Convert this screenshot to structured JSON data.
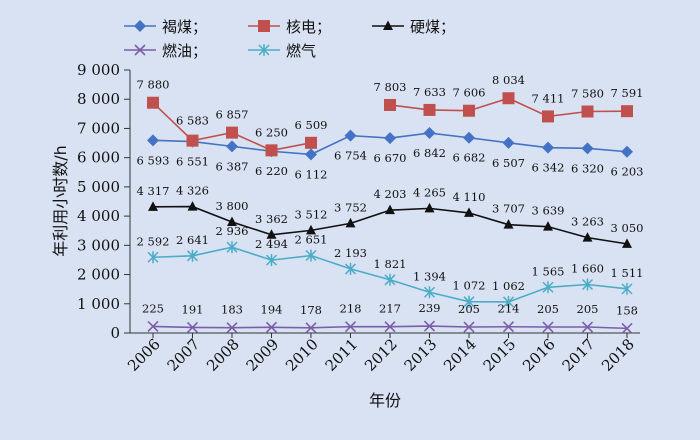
{
  "chart_data": {
    "type": "line",
    "title": "",
    "xlabel": "年份",
    "ylabel": "年利用小时数/h",
    "ylim": [
      0,
      9000
    ],
    "yticks": [
      0,
      1000,
      2000,
      3000,
      4000,
      5000,
      6000,
      7000,
      8000,
      9000
    ],
    "ytick_labels": [
      "0",
      "1 000",
      "2 000",
      "3 000",
      "4 000",
      "5 000",
      "6 000",
      "7 000",
      "8 000",
      "9 000"
    ],
    "categories": [
      "2006",
      "2007",
      "2008",
      "2009",
      "2010",
      "2011",
      "2012",
      "2013",
      "2014",
      "2015",
      "2016",
      "2017",
      "2018"
    ],
    "grid": false,
    "legend_position": "top",
    "series": [
      {
        "name": "褐煤",
        "legend_label": "褐煤；",
        "color": "#4472c4",
        "marker": "diamond",
        "values": [
          6593,
          6551,
          6387,
          6220,
          6112,
          6754,
          6670,
          6842,
          6682,
          6507,
          6342,
          6320,
          6203
        ],
        "labels": [
          "6 593",
          "6 551",
          "6 387",
          "6 220",
          "6 112",
          "6 754",
          "6 670",
          "6 842",
          "6 682",
          "6 507",
          "6 342",
          "6 320",
          "6 203"
        ]
      },
      {
        "name": "核电",
        "legend_label": "核电；",
        "color": "#c0504d",
        "marker": "square",
        "values": [
          7880,
          6583,
          6857,
          6250,
          6509,
          null,
          7803,
          7633,
          7606,
          8034,
          7411,
          7580,
          7591
        ],
        "labels": [
          "7 880",
          "6 583",
          "6 857",
          "6 250",
          "6 509",
          null,
          "7 803",
          "7 633",
          "7 606",
          "8 034",
          "7 411",
          "7 580",
          "7 591"
        ]
      },
      {
        "name": "硬煤",
        "legend_label": "硬煤；",
        "color": "#111111",
        "marker": "triangle",
        "values": [
          4317,
          4326,
          3800,
          3362,
          3512,
          3752,
          4203,
          4265,
          4110,
          3707,
          3639,
          3263,
          3050
        ],
        "labels": [
          "4 317",
          "4 326",
          "3 800",
          "3 362",
          "3 512",
          "3 752",
          "4 203",
          "4 265",
          "4 110",
          "3 707",
          "3 639",
          "3 263",
          "3 050"
        ]
      },
      {
        "name": "燃油",
        "legend_label": "燃油；",
        "color": "#7b5ea7",
        "marker": "x",
        "values": [
          225,
          191,
          183,
          194,
          178,
          218,
          217,
          239,
          205,
          214,
          205,
          205,
          158
        ],
        "labels": [
          "225",
          "191",
          "183",
          "194",
          "178",
          "218",
          "217",
          "239",
          "205",
          "214",
          "205",
          "205",
          "158"
        ]
      },
      {
        "name": "燃气",
        "legend_label": "燃气",
        "color": "#4bacc6",
        "marker": "asterisk",
        "values": [
          2592,
          2641,
          2936,
          2494,
          2651,
          2193,
          1821,
          1394,
          1072,
          1062,
          1565,
          1660,
          1511
        ],
        "labels": [
          "2 592",
          "2 641",
          "2 936",
          "2 494",
          "2 651",
          "2 193",
          "1 821",
          "1 394",
          "1 072",
          "1 062",
          "1 565",
          "1 660",
          "1 511"
        ]
      }
    ]
  }
}
